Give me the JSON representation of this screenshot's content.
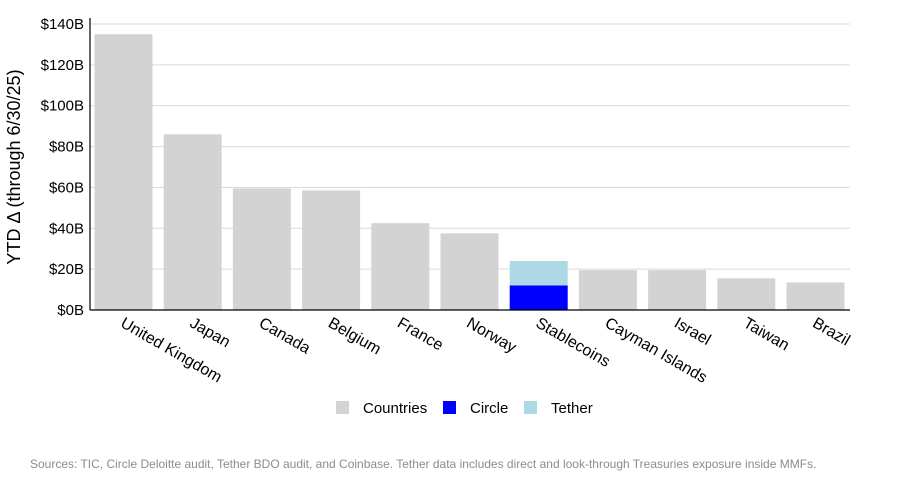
{
  "chart_data": {
    "type": "bar",
    "title": "",
    "xlabel": "",
    "ylabel": "YTD Δ (through 6/30/25)",
    "ylim": [
      0,
      140
    ],
    "y_ticks": [
      0,
      20,
      40,
      60,
      80,
      100,
      120,
      140
    ],
    "y_tick_labels": [
      "$0B",
      "$20B",
      "$40B",
      "$60B",
      "$80B",
      "$100B",
      "$120B",
      "$140B"
    ],
    "grid": true,
    "legend_placement": "bottom-center",
    "categories": [
      "United Kingdom",
      "Japan",
      "Canada",
      "Belgium",
      "France",
      "Norway",
      "Stablecoins",
      "Cayman Islands",
      "Israel",
      "Taiwan",
      "Brazil"
    ],
    "series": [
      {
        "name": "Countries",
        "color": "#d3d3d3",
        "values": [
          135,
          86,
          59.5,
          58.5,
          42.5,
          37.5,
          0,
          19.5,
          19.5,
          15.5,
          13.5
        ]
      },
      {
        "name": "Circle",
        "color": "#0000ff",
        "values": [
          0,
          0,
          0,
          0,
          0,
          0,
          12,
          0,
          0,
          0,
          0
        ]
      },
      {
        "name": "Tether",
        "color": "#add8e6",
        "values": [
          0,
          0,
          0,
          0,
          0,
          0,
          12,
          0,
          0,
          0,
          0
        ]
      }
    ],
    "stacked": true
  },
  "footer": {
    "source_note": "Sources: TIC, Circle Deloitte audit, Tether BDO audit, and Coinbase. Tether data includes direct and look-through Treasuries exposure inside MMFs."
  }
}
